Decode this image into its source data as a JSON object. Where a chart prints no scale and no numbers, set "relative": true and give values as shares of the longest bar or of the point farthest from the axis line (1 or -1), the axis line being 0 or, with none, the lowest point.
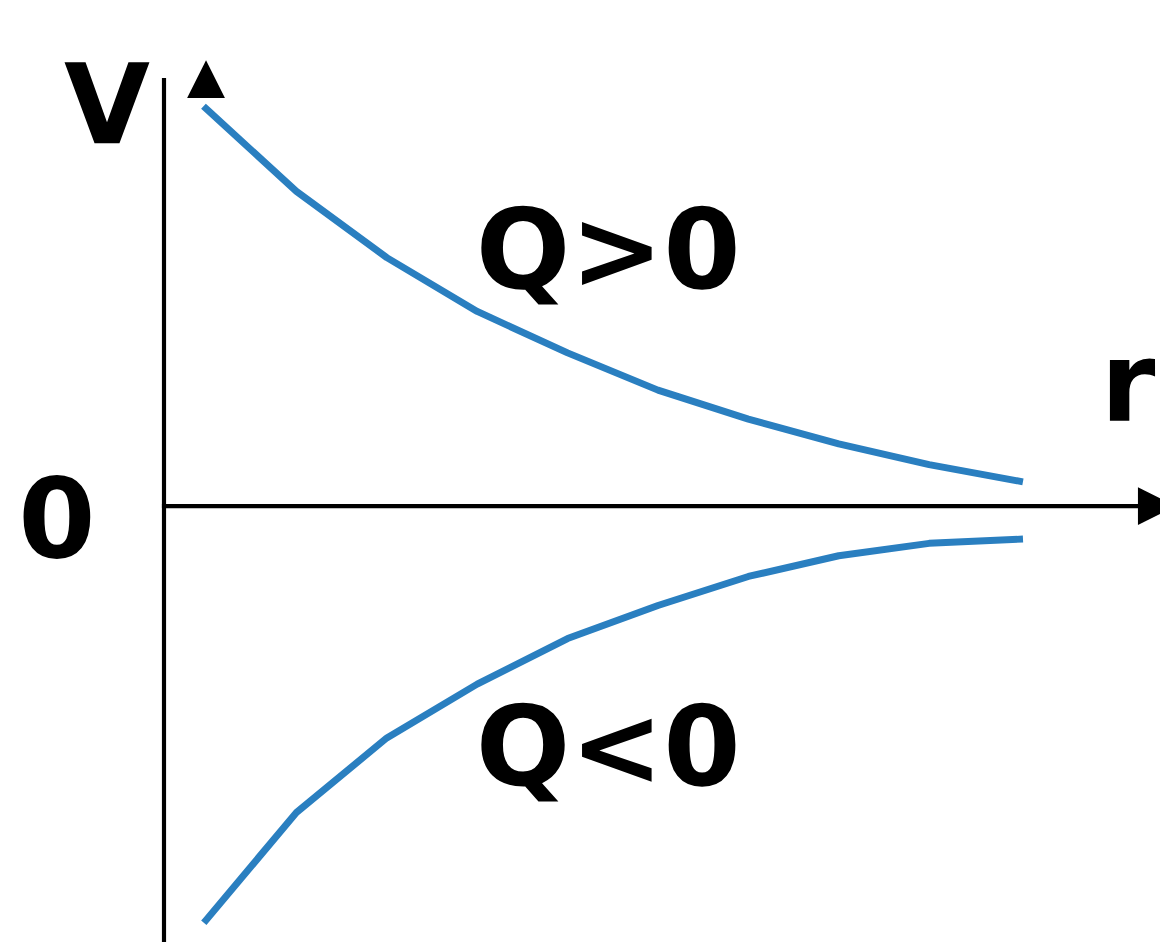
{
  "chart_data": {
    "type": "line",
    "relative": true,
    "xlabel": "r",
    "ylabel": "V",
    "annotations": [
      "0"
    ],
    "categories": [
      null,
      null,
      null,
      null,
      null,
      null,
      null,
      null,
      null,
      null
    ],
    "series": [
      {
        "name": "Q>0",
        "color": "#2a7fc0",
        "values": [
          0.96,
          0.76,
          0.6,
          0.47,
          0.37,
          0.28,
          0.21,
          0.15,
          0.1,
          0.06
        ]
      },
      {
        "name": "Q<0",
        "color": "#2a7fc0",
        "values": [
          -1.0,
          -0.74,
          -0.56,
          -0.43,
          -0.32,
          -0.24,
          -0.17,
          -0.12,
          -0.09,
          -0.08
        ]
      }
    ],
    "legend": false,
    "marker": "none",
    "line_style": "solid"
  }
}
